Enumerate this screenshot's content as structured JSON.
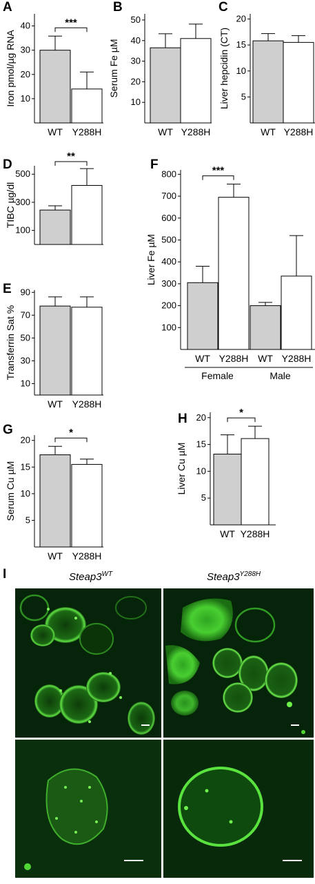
{
  "chart_data": [
    {
      "id": "A",
      "panel_label": "A",
      "type": "bar",
      "ylabel": "Iron pmol/µg RNA",
      "ylim": [
        0,
        45
      ],
      "yticks": [
        10,
        20,
        30,
        40
      ],
      "categories": [
        "WT",
        "Y288H"
      ],
      "values": [
        30,
        14
      ],
      "errors": [
        5.8,
        7
      ],
      "fills": [
        "#cfcfcf",
        "#ffffff"
      ],
      "significance": "***"
    },
    {
      "id": "B",
      "panel_label": "B",
      "type": "bar",
      "ylabel": "Serum Fe µM",
      "ylim": [
        0,
        53
      ],
      "yticks": [
        10,
        20,
        30,
        40,
        50
      ],
      "categories": [
        "WT",
        "Y288H"
      ],
      "values": [
        36.5,
        41
      ],
      "errors": [
        6.8,
        7
      ],
      "fills": [
        "#cfcfcf",
        "#ffffff"
      ]
    },
    {
      "id": "C",
      "panel_label": "C",
      "type": "bar",
      "ylabel": "Liver hepcidin (CT)",
      "ylim": [
        0,
        21
      ],
      "yticks": [
        5,
        10,
        15,
        20
      ],
      "categories": [
        "WT",
        "Y288H"
      ],
      "values": [
        15.8,
        15.5
      ],
      "errors": [
        1.4,
        1.3
      ],
      "fills": [
        "#cfcfcf",
        "#ffffff"
      ]
    },
    {
      "id": "D",
      "panel_label": "D",
      "type": "bar",
      "ylabel": "TIBC µg/dl",
      "ylim": [
        0,
        560
      ],
      "yticks": [
        100,
        300,
        500
      ],
      "categories": [
        "WT",
        "Y288H"
      ],
      "values": [
        245,
        420
      ],
      "errors": [
        30,
        120
      ],
      "fills": [
        "#cfcfcf",
        "#ffffff"
      ],
      "significance": "**"
    },
    {
      "id": "E",
      "panel_label": "E",
      "type": "bar",
      "ylabel": "Transferrin Sat %",
      "ylim": [
        0,
        92
      ],
      "yticks": [
        10,
        30,
        50,
        70,
        90
      ],
      "categories": [
        "WT",
        "Y288H"
      ],
      "values": [
        78,
        77
      ],
      "errors": [
        8,
        9
      ],
      "fills": [
        "#cfcfcf",
        "#ffffff"
      ]
    },
    {
      "id": "F",
      "panel_label": "F",
      "type": "bar",
      "ylabel": "Liver Fe µM",
      "ylim": [
        0,
        820
      ],
      "yticks": [
        100,
        200,
        300,
        400,
        500,
        600,
        700,
        800
      ],
      "categories": [
        "WT",
        "Y288H",
        "WT",
        "Y288H"
      ],
      "groups": [
        "Female",
        "Male"
      ],
      "values": [
        305,
        695,
        200,
        335
      ],
      "errors": [
        75,
        60,
        15,
        185
      ],
      "fills": [
        "#cfcfcf",
        "#ffffff",
        "#cfcfcf",
        "#ffffff"
      ],
      "significance": "***"
    },
    {
      "id": "G",
      "panel_label": "G",
      "type": "bar",
      "ylabel": "Serum Cu µM",
      "ylim": [
        0,
        21
      ],
      "yticks": [
        5,
        10,
        15,
        20
      ],
      "categories": [
        "WT",
        "Y288H"
      ],
      "values": [
        17.3,
        15.5
      ],
      "errors": [
        1.6,
        1.0
      ],
      "fills": [
        "#cfcfcf",
        "#ffffff"
      ],
      "significance": "*"
    },
    {
      "id": "H",
      "panel_label": "H",
      "type": "bar",
      "ylabel": "Liver Cu µM",
      "ylim": [
        0,
        21
      ],
      "yticks": [
        5,
        10,
        15,
        20
      ],
      "categories": [
        "WT",
        "Y288H"
      ],
      "values": [
        13.2,
        16.1
      ],
      "errors": [
        3.6,
        2.3
      ],
      "fills": [
        "#cfcfcf",
        "#ffffff"
      ],
      "significance": "*"
    }
  ],
  "micrographs": {
    "panel_label": "I",
    "left_title": "Steap3",
    "left_sup": "WT",
    "right_title": "Steap3",
    "right_sup": "Y288H",
    "fluorescence_color": "#3bd62a"
  }
}
